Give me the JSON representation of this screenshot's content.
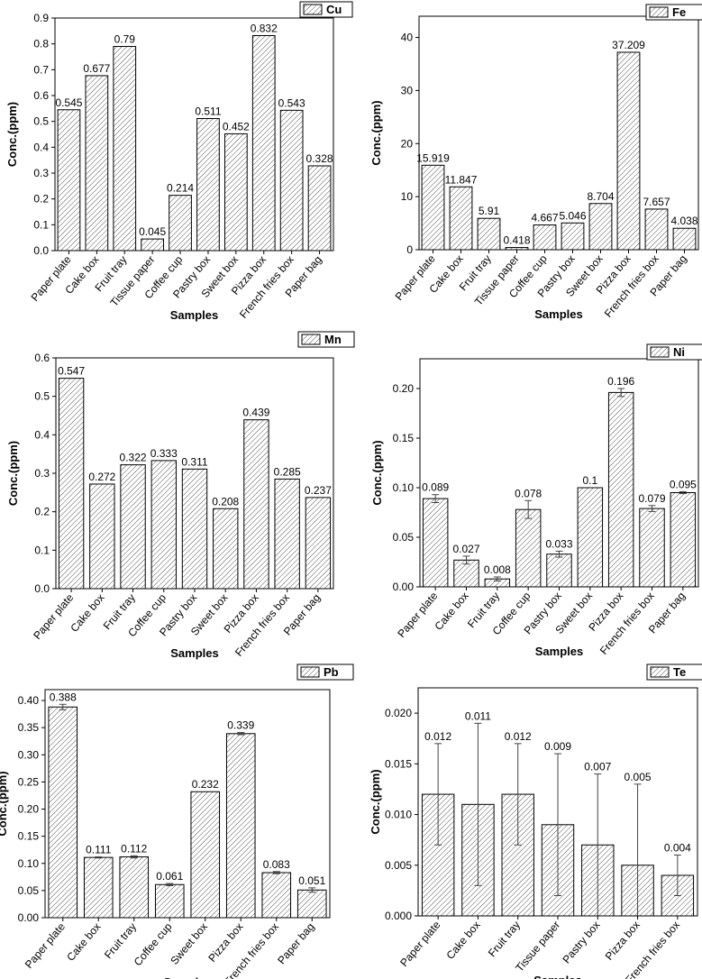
{
  "chart_data": [
    {
      "type": "bar",
      "ylabel": "Conc.(ppm)",
      "xlabel": "Samples",
      "legend": "Cu",
      "legend_placement": "top-right",
      "ylim": [
        0,
        0.9
      ],
      "yticks": [
        0.0,
        0.1,
        0.2,
        0.3,
        0.4,
        0.5,
        0.6,
        0.7,
        0.8,
        0.9
      ],
      "ytick_labels": [
        "0.0",
        "0.1",
        "0.2",
        "0.3",
        "0.4",
        "0.5",
        "0.6",
        "0.7",
        "0.8",
        "0.9"
      ],
      "categories": [
        "Paper plate",
        "Cake box",
        "Fruit tray",
        "Tissue paper",
        "Coffee cup",
        "Pastry box",
        "Sweet box",
        "Pizza box",
        "French fries box",
        "Paper bag"
      ],
      "values": [
        0.545,
        0.677,
        0.79,
        0.045,
        0.214,
        0.511,
        0.452,
        0.832,
        0.543,
        0.328
      ],
      "value_labels": [
        "0.545",
        "0.677",
        "0.79",
        "0.045",
        "0.214",
        "0.511",
        "0.452",
        "0.832",
        "0.543",
        "0.328"
      ],
      "errors": [
        0,
        0,
        0,
        0,
        0,
        0,
        0,
        0,
        0,
        0
      ]
    },
    {
      "type": "bar",
      "ylabel": "Conc.(ppm)",
      "xlabel": "Samples",
      "legend": "Fe",
      "legend_placement": "top-right",
      "ylim": [
        0,
        44
      ],
      "yticks": [
        0,
        10,
        20,
        30,
        40
      ],
      "ytick_labels": [
        "0",
        "10",
        "20",
        "30",
        "40"
      ],
      "categories": [
        "Paper plate",
        "Cake box",
        "Fruit tray",
        "Tissue paper",
        "Coffee cup",
        "Pastry box",
        "Sweet box",
        "Pizza box",
        "French fries box",
        "Paper bag"
      ],
      "values": [
        15.919,
        11.847,
        5.91,
        0.418,
        4.667,
        5.046,
        8.704,
        37.209,
        7.657,
        4.038
      ],
      "value_labels": [
        "15.919",
        "11.847",
        "5.91",
        "0.418",
        "4.667",
        "5.046",
        "8.704",
        "37.209",
        "7.657",
        "4.038"
      ],
      "errors": [
        0,
        0,
        0,
        0,
        0,
        0,
        0,
        0,
        0,
        0
      ]
    },
    {
      "type": "bar",
      "ylabel": "Conc.(ppm)",
      "xlabel": "Samples",
      "legend": "Mn",
      "legend_placement": "top-right",
      "ylim": [
        0,
        0.6
      ],
      "yticks": [
        0.0,
        0.1,
        0.2,
        0.3,
        0.4,
        0.5,
        0.6
      ],
      "ytick_labels": [
        "0.0",
        "0.1",
        "0.2",
        "0.3",
        "0.4",
        "0.5",
        "0.6"
      ],
      "categories": [
        "Paper plate",
        "Cake box",
        "Fruit tray",
        "Coffee cup",
        "Pastry box",
        "Sweet box",
        "Pizza box",
        "French fries box",
        "Paper bag"
      ],
      "values": [
        0.547,
        0.272,
        0.322,
        0.333,
        0.311,
        0.208,
        0.439,
        0.285,
        0.237
      ],
      "value_labels": [
        "0.547",
        "0.272",
        "0.322",
        "0.333",
        "0.311",
        "0.208",
        "0.439",
        "0.285",
        "0.237"
      ],
      "errors": [
        0,
        0,
        0,
        0,
        0,
        0,
        0,
        0,
        0
      ]
    },
    {
      "type": "bar",
      "ylabel": "Conc.(ppm)",
      "xlabel": "Samples",
      "legend": "Ni",
      "legend_placement": "top-right",
      "ylim": [
        0,
        0.23
      ],
      "yticks": [
        0.0,
        0.05,
        0.1,
        0.15,
        0.2
      ],
      "ytick_labels": [
        "0.00",
        "0.05",
        "0.10",
        "0.15",
        "0.20"
      ],
      "categories": [
        "Paper plate",
        "Cake box",
        "Fruit tray",
        "Coffee cup",
        "Pastry box",
        "Sweet box",
        "Pizza box",
        "French fries box",
        "Paper bag"
      ],
      "values": [
        0.089,
        0.027,
        0.008,
        0.078,
        0.033,
        0.1,
        0.196,
        0.079,
        0.095
      ],
      "value_labels": [
        "0.089",
        "0.027",
        "0.008",
        "0.078",
        "0.033",
        "0.1",
        "0.196",
        "0.079",
        "0.095"
      ],
      "errors": [
        0.004,
        0.004,
        0.002,
        0.009,
        0.003,
        0,
        0.004,
        0.003,
        0.001
      ]
    },
    {
      "type": "bar",
      "ylabel": "Conc.(ppm)",
      "xlabel": "Samples",
      "legend": "Pb",
      "legend_placement": "top-right",
      "ylim": [
        0,
        0.42
      ],
      "yticks": [
        0.0,
        0.05,
        0.1,
        0.15,
        0.2,
        0.25,
        0.3,
        0.35,
        0.4
      ],
      "ytick_labels": [
        "0.00",
        "0.05",
        "0.10",
        "0.15",
        "0.20",
        "0.25",
        "0.30",
        "0.35",
        "0.40"
      ],
      "categories": [
        "Paper plate",
        "Cake box",
        "Fruit tray",
        "Coffee cup",
        "Sweet box",
        "Pizza box",
        "French fries box",
        "Paper bag"
      ],
      "values": [
        0.388,
        0.111,
        0.112,
        0.061,
        0.232,
        0.339,
        0.083,
        0.051
      ],
      "value_labels": [
        "0.388",
        "0.111",
        "0.112",
        "0.061",
        "0.232",
        "0.339",
        "0.083",
        "0.051"
      ],
      "errors": [
        0.005,
        0.001,
        0.002,
        0.002,
        0,
        0.002,
        0.002,
        0.004
      ]
    },
    {
      "type": "bar",
      "ylabel": "Conc.(ppm)",
      "xlabel": "Samples",
      "legend": "Te",
      "legend_placement": "top-right",
      "ylim": [
        0,
        0.0225
      ],
      "yticks": [
        0.0,
        0.005,
        0.01,
        0.015,
        0.02
      ],
      "ytick_labels": [
        "0.000",
        "0.005",
        "0.010",
        "0.015",
        "0.020"
      ],
      "categories": [
        "Paper plate",
        "Cake box",
        "Fruit tray",
        "Tissue paper",
        "Pastry box",
        "Pizza box",
        "French fries box"
      ],
      "values": [
        0.012,
        0.011,
        0.012,
        0.009,
        0.007,
        0.005,
        0.004
      ],
      "value_labels": [
        "0.012",
        "0.011",
        "0.012",
        "0.009",
        "0.007",
        "0.005",
        "0.004"
      ],
      "errors": [
        0.005,
        0.008,
        0.005,
        0.007,
        0.007,
        0.008,
        0.002
      ]
    }
  ],
  "style": {
    "bar_fill": "#ffffff",
    "bar_hatch": "#555555",
    "axis_color": "#000000",
    "error_color": "#444444"
  }
}
